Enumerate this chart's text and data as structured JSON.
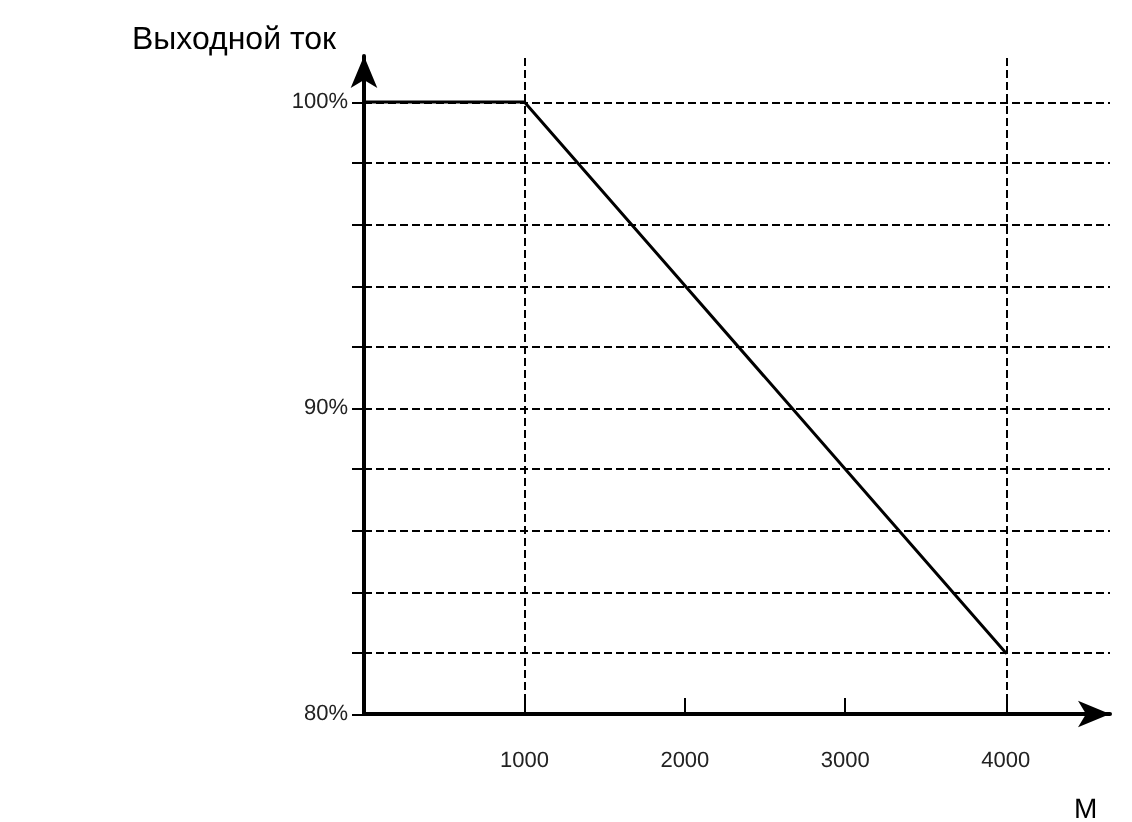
{
  "chart_data": {
    "type": "line",
    "ylabel": "Выходной ток",
    "xlabel": "M",
    "x": [
      0,
      1000,
      4000
    ],
    "series": [
      {
        "color": "#000000",
        "values": [
          100,
          100,
          82
        ]
      }
    ],
    "xlim": [
      0,
      4650
    ],
    "xticks": [
      1000,
      2000,
      3000,
      4000
    ],
    "ylim": [
      80,
      101.5
    ],
    "yticks": [
      {
        "value": 80,
        "label": "80%"
      },
      {
        "value": 82,
        "label": null
      },
      {
        "value": 84,
        "label": null
      },
      {
        "value": 86,
        "label": null
      },
      {
        "value": 88,
        "label": null
      },
      {
        "value": 90,
        "label": "90%"
      },
      {
        "value": 92,
        "label": null
      },
      {
        "value": 94,
        "label": null
      },
      {
        "value": 96,
        "label": null
      },
      {
        "value": 98,
        "label": null
      },
      {
        "value": 100,
        "label": "100%"
      }
    ],
    "grid": "y",
    "marker": "none",
    "line_style": "solid",
    "ref_lines": [
      {
        "axis": "x",
        "value": 1000,
        "line_style": "dashed"
      },
      {
        "axis": "x",
        "value": 4000,
        "line_style": "dashed"
      }
    ]
  }
}
